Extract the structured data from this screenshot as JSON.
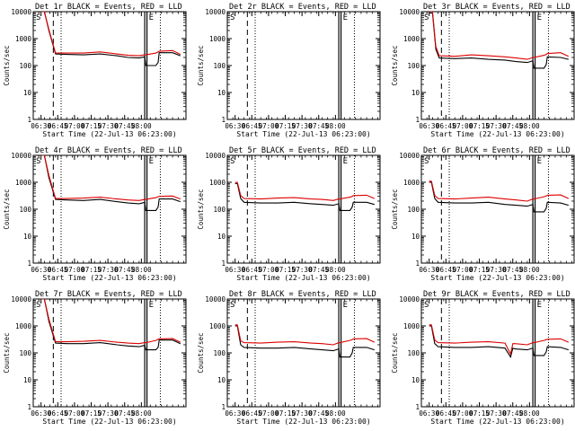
{
  "chart_data": [
    {
      "type": "line",
      "title": "Det 1r BLACK = Events, RED = LLD",
      "xlabel": "Start Time (22-Jul-13 06:23:00)",
      "ylabel": "Counts/sec",
      "y_scale": "log",
      "ylim": [
        1,
        10000
      ],
      "x_ticks": [
        "06:30",
        "06:45",
        "07:00",
        "07:15",
        "07:30",
        "07:45",
        "08:00"
      ],
      "y_ticks": [
        "1",
        "10",
        "100",
        "1000",
        "10000"
      ],
      "flags": [
        "S",
        "E"
      ],
      "series": [
        {
          "name": "Events",
          "color": "#000000",
          "x_min": [
            7,
            10,
            14,
            20,
            30,
            45,
            60,
            75,
            85,
            95,
            100,
            101,
            110,
            112,
            113,
            125,
            132
          ],
          "y": [
            10000,
            10000,
            2000,
            270,
            260,
            250,
            270,
            230,
            200,
            190,
            210,
            100,
            100,
            130,
            300,
            300,
            230
          ]
        },
        {
          "name": "LLD",
          "color": "#dd0000",
          "x_min": [
            7,
            10,
            14,
            20,
            30,
            45,
            60,
            75,
            85,
            95,
            100,
            101,
            110,
            112,
            113,
            125,
            132
          ],
          "y": [
            10000,
            10000,
            2200,
            290,
            290,
            290,
            320,
            270,
            240,
            230,
            250,
            250,
            290,
            320,
            340,
            360,
            260
          ]
        }
      ],
      "markers_min": {
        "dashed": 18,
        "dotted": [
          25,
          114
        ],
        "solid": [
          100,
          102
        ]
      }
    },
    {
      "type": "line",
      "title": "Det 2r BLACK = Events, RED = LLD",
      "xlabel": "Start Time (22-Jul-13 06:23:00)",
      "ylabel": "Counts/sec",
      "y_scale": "log",
      "ylim": [
        1,
        10000
      ],
      "x_ticks": [
        "06:30",
        "06:45",
        "07:00",
        "07:15",
        "07:30",
        "07:45",
        "08:00"
      ],
      "y_ticks": [
        "1",
        "10",
        "100",
        "1000",
        "10000"
      ],
      "flags": [
        "S",
        "E"
      ],
      "series": [],
      "markers_min": {
        "dashed": 18,
        "dotted": [
          25,
          114
        ],
        "solid": [
          100,
          102
        ]
      }
    },
    {
      "type": "line",
      "title": "Det 3r BLACK = Events, RED = LLD",
      "xlabel": "Start Time (22-Jul-13 06:23:00)",
      "ylabel": "Counts/sec",
      "y_scale": "log",
      "ylim": [
        1,
        10000
      ],
      "x_ticks": [
        "06:30",
        "06:45",
        "07:00",
        "07:15",
        "07:30",
        "07:45",
        "08:00"
      ],
      "y_ticks": [
        "1",
        "10",
        "100",
        "1000",
        "10000"
      ],
      "flags": [
        "S",
        "E"
      ],
      "series": [
        {
          "name": "Events",
          "color": "#000000",
          "x_min": [
            7,
            10,
            13,
            16,
            30,
            45,
            60,
            75,
            85,
            95,
            100,
            101,
            110,
            112,
            113,
            125,
            132
          ],
          "y": [
            9000,
            9000,
            400,
            190,
            180,
            190,
            170,
            160,
            140,
            130,
            150,
            80,
            80,
            110,
            210,
            200,
            170
          ]
        },
        {
          "name": "LLD",
          "color": "#dd0000",
          "x_min": [
            7,
            10,
            13,
            16,
            30,
            45,
            60,
            75,
            85,
            95,
            100,
            101,
            110,
            112,
            113,
            125,
            132
          ],
          "y": [
            10000,
            10000,
            500,
            230,
            220,
            250,
            230,
            210,
            190,
            170,
            200,
            200,
            240,
            260,
            280,
            300,
            220
          ]
        }
      ],
      "markers_min": {
        "dashed": 18,
        "dotted": [
          25,
          114
        ],
        "solid": [
          100,
          102
        ]
      }
    },
    {
      "type": "line",
      "title": "Det 4r BLACK = Events, RED = LLD",
      "xlabel": "Start Time (22-Jul-13 06:23:00)",
      "ylabel": "Counts/sec",
      "y_scale": "log",
      "ylim": [
        1,
        10000
      ],
      "x_ticks": [
        "06:30",
        "06:45",
        "07:00",
        "07:15",
        "07:30",
        "07:45",
        "08:00"
      ],
      "y_ticks": [
        "1",
        "10",
        "100",
        "1000",
        "10000"
      ],
      "flags": [
        "S",
        "E"
      ],
      "series": [
        {
          "name": "Events",
          "color": "#000000",
          "x_min": [
            7,
            10,
            14,
            20,
            30,
            45,
            60,
            75,
            85,
            95,
            100,
            101,
            110,
            112,
            113,
            125,
            132
          ],
          "y": [
            10000,
            10000,
            1500,
            230,
            220,
            210,
            230,
            190,
            170,
            160,
            180,
            90,
            90,
            120,
            240,
            240,
            190
          ]
        },
        {
          "name": "LLD",
          "color": "#dd0000",
          "x_min": [
            7,
            10,
            14,
            20,
            30,
            45,
            60,
            75,
            85,
            95,
            100,
            101,
            110,
            112,
            113,
            125,
            132
          ],
          "y": [
            10000,
            10000,
            1800,
            250,
            250,
            260,
            280,
            240,
            220,
            210,
            230,
            230,
            270,
            290,
            300,
            310,
            240
          ]
        }
      ],
      "markers_min": {
        "dashed": 18,
        "dotted": [
          25,
          114
        ],
        "solid": [
          100,
          102
        ]
      }
    },
    {
      "type": "line",
      "title": "Det 5r BLACK = Events, RED = LLD",
      "xlabel": "Start Time (22-Jul-13 06:23:00)",
      "ylabel": "Counts/sec",
      "y_scale": "log",
      "ylim": [
        1,
        10000
      ],
      "x_ticks": [
        "06:30",
        "06:45",
        "07:00",
        "07:15",
        "07:30",
        "07:45",
        "08:00"
      ],
      "y_ticks": [
        "1",
        "10",
        "100",
        "1000",
        "10000"
      ],
      "flags": [
        "S",
        "E"
      ],
      "series": [
        {
          "name": "Events",
          "color": "#000000",
          "x_min": [
            7,
            9,
            12,
            15,
            30,
            45,
            60,
            75,
            85,
            95,
            100,
            101,
            110,
            112,
            113,
            125,
            132
          ],
          "y": [
            900,
            900,
            250,
            180,
            170,
            170,
            180,
            160,
            150,
            140,
            160,
            90,
            90,
            120,
            180,
            180,
            150
          ]
        },
        {
          "name": "LLD",
          "color": "#dd0000",
          "x_min": [
            7,
            9,
            12,
            15,
            30,
            45,
            60,
            75,
            85,
            95,
            100,
            101,
            110,
            112,
            113,
            125,
            132
          ],
          "y": [
            1000,
            1000,
            320,
            250,
            240,
            260,
            270,
            240,
            230,
            210,
            240,
            240,
            280,
            300,
            320,
            330,
            250
          ]
        }
      ],
      "markers_min": {
        "dashed": 18,
        "dotted": [
          25,
          114
        ],
        "solid": [
          100,
          102
        ]
      }
    },
    {
      "type": "line",
      "title": "Det 6r BLACK = Events, RED = LLD",
      "xlabel": "Start Time (22-Jul-13 06:23:00)",
      "ylabel": "Counts/sec",
      "y_scale": "log",
      "ylim": [
        1,
        10000
      ],
      "x_ticks": [
        "06:30",
        "06:45",
        "07:00",
        "07:15",
        "07:30",
        "07:45",
        "08:00"
      ],
      "y_ticks": [
        "1",
        "10",
        "100",
        "1000",
        "10000"
      ],
      "flags": [
        "S",
        "E"
      ],
      "series": [
        {
          "name": "Events",
          "color": "#000000",
          "x_min": [
            7,
            9,
            12,
            15,
            30,
            45,
            60,
            75,
            85,
            95,
            100,
            101,
            110,
            112,
            113,
            125,
            132
          ],
          "y": [
            1000,
            1000,
            250,
            180,
            170,
            170,
            180,
            150,
            140,
            130,
            150,
            80,
            80,
            110,
            180,
            170,
            140
          ]
        },
        {
          "name": "LLD",
          "color": "#dd0000",
          "x_min": [
            7,
            9,
            12,
            15,
            30,
            45,
            60,
            75,
            85,
            95,
            100,
            101,
            110,
            112,
            113,
            125,
            132
          ],
          "y": [
            1100,
            1100,
            320,
            250,
            240,
            260,
            280,
            240,
            220,
            200,
            240,
            240,
            290,
            310,
            330,
            340,
            250
          ]
        }
      ],
      "markers_min": {
        "dashed": 18,
        "dotted": [
          25,
          114
        ],
        "solid": [
          100,
          102
        ]
      }
    },
    {
      "type": "line",
      "title": "Det 7r BLACK = Events, RED = LLD",
      "xlabel": "Start Time (22-Jul-13 06:23:00)",
      "ylabel": "Counts/sec",
      "y_scale": "log",
      "ylim": [
        1,
        10000
      ],
      "x_ticks": [
        "06:30",
        "06:45",
        "07:00",
        "07:15",
        "07:30",
        "07:45",
        "08:00"
      ],
      "y_ticks": [
        "1",
        "10",
        "100",
        "1000",
        "10000"
      ],
      "flags": [
        "S",
        "E"
      ],
      "series": [
        {
          "name": "Events",
          "color": "#000000",
          "x_min": [
            7,
            10,
            14,
            20,
            30,
            45,
            60,
            75,
            85,
            95,
            100,
            101,
            110,
            112,
            113,
            125,
            132
          ],
          "y": [
            10000,
            10000,
            1500,
            230,
            220,
            220,
            240,
            200,
            180,
            170,
            190,
            130,
            130,
            160,
            300,
            300,
            220
          ]
        },
        {
          "name": "LLD",
          "color": "#dd0000",
          "x_min": [
            7,
            10,
            14,
            20,
            30,
            45,
            60,
            75,
            85,
            95,
            100,
            101,
            110,
            112,
            113,
            125,
            132
          ],
          "y": [
            10000,
            10000,
            1800,
            260,
            260,
            270,
            290,
            250,
            230,
            220,
            240,
            240,
            290,
            320,
            330,
            340,
            250
          ]
        }
      ],
      "markers_min": {
        "dashed": 18,
        "dotted": [
          25,
          114
        ],
        "solid": [
          100,
          102
        ]
      }
    },
    {
      "type": "line",
      "title": "Det 8r BLACK = Events, RED = LLD",
      "xlabel": "Start Time (22-Jul-13 06:23:00)",
      "ylabel": "Counts/sec",
      "y_scale": "log",
      "ylim": [
        1,
        10000
      ],
      "x_ticks": [
        "06:30",
        "06:45",
        "07:00",
        "07:15",
        "07:30",
        "07:45",
        "08:00"
      ],
      "y_ticks": [
        "1",
        "10",
        "100",
        "1000",
        "10000"
      ],
      "flags": [
        "S",
        "E"
      ],
      "series": [
        {
          "name": "Events",
          "color": "#000000",
          "x_min": [
            7,
            9,
            12,
            15,
            30,
            45,
            60,
            75,
            85,
            95,
            100,
            101,
            110,
            112,
            113,
            125,
            132
          ],
          "y": [
            1000,
            1000,
            200,
            160,
            150,
            150,
            160,
            140,
            130,
            120,
            140,
            70,
            70,
            100,
            160,
            160,
            130
          ]
        },
        {
          "name": "LLD",
          "color": "#dd0000",
          "x_min": [
            7,
            9,
            12,
            15,
            30,
            45,
            60,
            75,
            85,
            95,
            100,
            101,
            110,
            112,
            113,
            125,
            132
          ],
          "y": [
            1100,
            1100,
            280,
            240,
            230,
            250,
            260,
            230,
            220,
            200,
            240,
            240,
            290,
            310,
            330,
            340,
            250
          ]
        }
      ],
      "markers_min": {
        "dashed": 18,
        "dotted": [
          25,
          114
        ],
        "solid": [
          100,
          102
        ]
      }
    },
    {
      "type": "line",
      "title": "Det 9r BLACK = Events, RED = LLD",
      "xlabel": "Start Time (22-Jul-13 06:23:00)",
      "ylabel": "Counts/sec",
      "y_scale": "log",
      "ylim": [
        1,
        10000
      ],
      "x_ticks": [
        "06:30",
        "06:45",
        "07:00",
        "07:15",
        "07:30",
        "07:45",
        "08:00"
      ],
      "y_ticks": [
        "1",
        "10",
        "100",
        "1000",
        "10000"
      ],
      "flags": [
        "S",
        "E"
      ],
      "series": [
        {
          "name": "Events",
          "color": "#000000",
          "x_min": [
            7,
            9,
            12,
            15,
            30,
            45,
            60,
            75,
            80,
            82,
            84,
            95,
            100,
            101,
            110,
            112,
            113,
            125,
            132
          ],
          "y": [
            1000,
            1000,
            220,
            170,
            160,
            160,
            170,
            150,
            70,
            150,
            140,
            130,
            150,
            80,
            80,
            110,
            170,
            160,
            130
          ]
        },
        {
          "name": "LLD",
          "color": "#dd0000",
          "x_min": [
            7,
            9,
            12,
            15,
            30,
            45,
            60,
            75,
            80,
            82,
            84,
            95,
            100,
            101,
            110,
            112,
            113,
            125,
            132
          ],
          "y": [
            1100,
            1100,
            300,
            240,
            230,
            250,
            260,
            230,
            90,
            220,
            220,
            200,
            240,
            240,
            290,
            310,
            320,
            330,
            250
          ]
        }
      ],
      "markers_min": {
        "dashed": 18,
        "dotted": [
          25,
          114
        ],
        "solid": [
          100,
          102
        ]
      }
    }
  ]
}
